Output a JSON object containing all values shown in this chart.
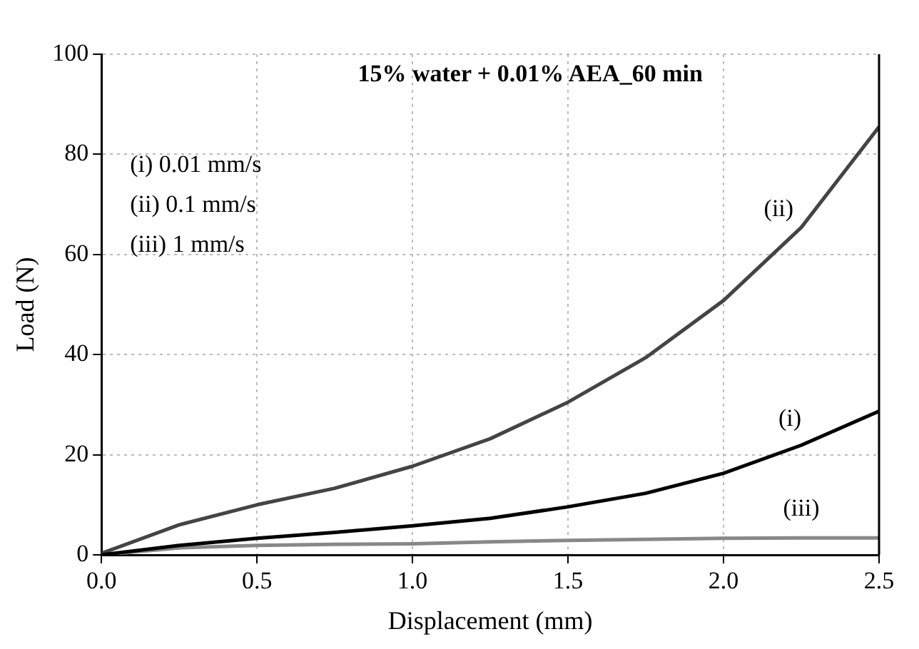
{
  "chart_data": {
    "type": "line",
    "title": "15% water + 0.01% AEA_60 min",
    "xlabel": "Displacement (mm)",
    "ylabel": "Load (N)",
    "x": [
      0,
      0.25,
      0.5,
      0.75,
      1.0,
      1.25,
      1.5,
      1.75,
      2.0,
      2.25,
      2.5
    ],
    "series": [
      {
        "name": "(i)",
        "color": "#000000",
        "values": [
          0,
          1.9,
          3.3,
          4.5,
          5.8,
          7.3,
          9.6,
          12.3,
          16.3,
          21.9,
          28.7
        ]
      },
      {
        "name": "(ii)",
        "color": "#444444",
        "values": [
          0.3,
          6.0,
          10.0,
          13.3,
          17.7,
          23.2,
          30.5,
          39.4,
          50.8,
          65.4,
          85.5
        ]
      },
      {
        "name": "(iii)",
        "color": "#888888",
        "values": [
          0,
          1.4,
          1.9,
          2.1,
          2.2,
          2.6,
          2.9,
          3.1,
          3.3,
          3.4,
          3.4
        ]
      }
    ],
    "annotations": [
      "(i) 0.01 mm/s",
      "(ii) 0.1 mm/s",
      "(iii) 1 mm/s"
    ],
    "xlim": [
      0,
      2.5
    ],
    "xticks": [
      {
        "value": 0,
        "label": "0.0"
      },
      {
        "value": 0.5,
        "label": "0.5"
      },
      {
        "value": 1,
        "label": "1.0"
      },
      {
        "value": 1.5,
        "label": "1.5"
      },
      {
        "value": 2,
        "label": "2.0"
      },
      {
        "value": 2.5,
        "label": "2.5"
      }
    ],
    "ylim": [
      0,
      100
    ],
    "yticks": [
      0,
      20,
      40,
      60,
      80,
      100
    ],
    "grid": true,
    "marker": "none",
    "line_style": "solid"
  }
}
